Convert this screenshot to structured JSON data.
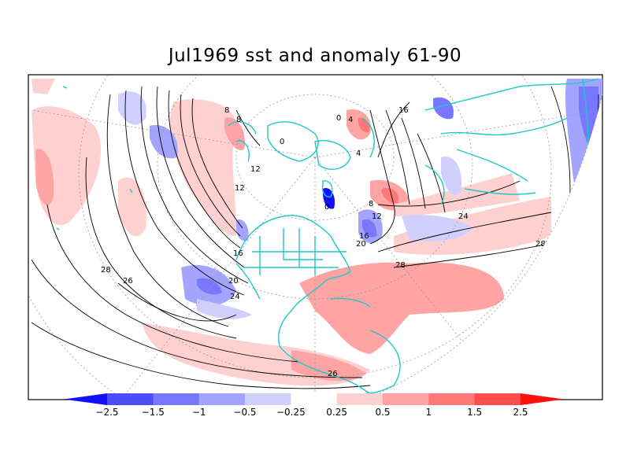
{
  "title": "Jul1969 sst and anomaly 61-90",
  "colorbar": {
    "levels": [
      "-2.5",
      "-1.5",
      "-1",
      "-0.5",
      "-0.25",
      "0.25",
      "0.5",
      "1",
      "1.5",
      "2.5"
    ],
    "colors": [
      "#1010ff",
      "#4c4cff",
      "#7878ff",
      "#a4a4ff",
      "#d0d0ff",
      "#ffffff",
      "#ffd0d0",
      "#ffa4a4",
      "#ff7878",
      "#ff4c4c",
      "#ff1010"
    ]
  },
  "contour_labels": [
    "8",
    "8",
    "12",
    "12",
    "16",
    "20",
    "24",
    "26",
    "28",
    "16",
    "12",
    "8",
    "16",
    "20",
    "24",
    "28",
    "28",
    "24",
    "26",
    "0",
    "0",
    "4",
    "4",
    "0"
  ],
  "colors": {
    "coastline": "#1ec8c8",
    "contour": "#000000",
    "grid": "#999999"
  }
}
